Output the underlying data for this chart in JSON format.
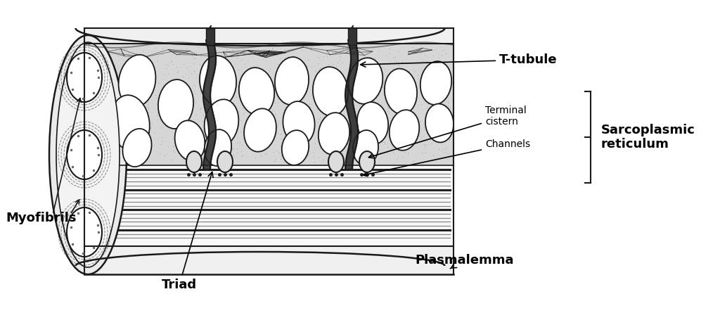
{
  "bg_color": "#ffffff",
  "lc": "#1a1a1a",
  "fig_w": 10.24,
  "fig_h": 4.45,
  "dpi": 100,
  "labels": {
    "T_tubule": "T-tubule",
    "Terminal_cistern": "Terminal\ncistern",
    "Channels": "Channels",
    "Sarcoplasmic": "Sarcoplasmic\nreticulum",
    "Plasmalemma": "Plasmalemma",
    "Myofibrils": "Myofibrils",
    "Triad": "Triad"
  }
}
